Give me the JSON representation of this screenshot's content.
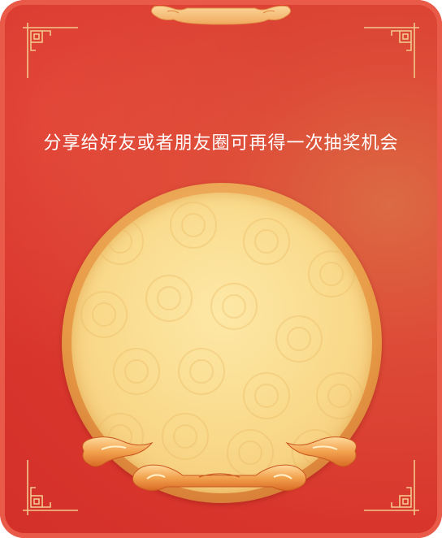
{
  "card": {
    "headline": "分享给好友或者朋友圈可再得一次抽奖机会"
  },
  "colors": {
    "background_red": "#d8352c",
    "border_red": "#ea5a48",
    "gold": "#f2c271",
    "disc_face": "#f9d98a",
    "text": "#ffffff"
  },
  "icons": {
    "corners": "chinese-fret-corner-icon",
    "top": "cloud-scroll-cap-icon",
    "bottom": "auspicious-cloud-ornament-icon"
  }
}
